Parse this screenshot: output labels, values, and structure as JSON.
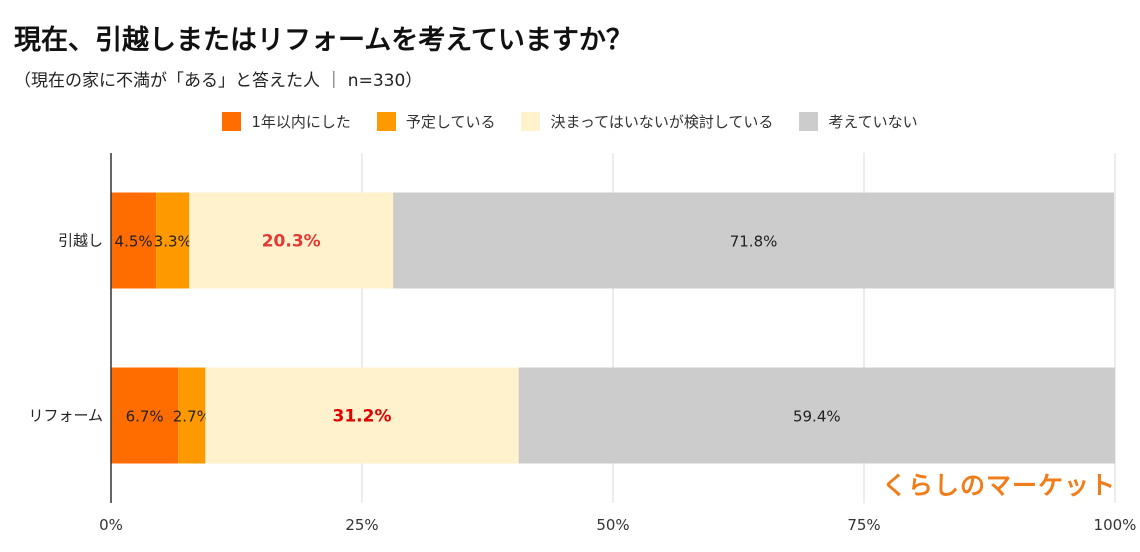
{
  "title": "現在、引越しまたはリフォームを考えていますか？",
  "subtitle": "（現在の家に不満が「ある」と答えた人 ｜ n=330）",
  "logo_text": "くらしのマーケット",
  "chart_data": {
    "type": "bar",
    "orientation": "horizontal",
    "stacked": true,
    "categories": [
      "引越し",
      "リフォーム"
    ],
    "series": [
      {
        "name": "1年以内にした",
        "color": "#ff6d01",
        "values": [
          4.5,
          6.7
        ],
        "labels": [
          "4.5%",
          "6.7%"
        ],
        "label_color": "#222222",
        "label_bold": false
      },
      {
        "name": "予定している",
        "color": "#ff9900",
        "values": [
          3.3,
          2.7
        ],
        "labels": [
          "3.3%",
          "2.7%"
        ],
        "label_color": "#222222",
        "label_bold": false
      },
      {
        "name": "決まってはいないが検討している",
        "color": "#fff2cc",
        "values": [
          20.3,
          31.2
        ],
        "labels": [
          "20.3%",
          "31.2%"
        ],
        "label_colors": [
          "#e53935",
          "#e00000"
        ],
        "label_bold": true
      },
      {
        "name": "考えていない",
        "color": "#cccccc",
        "values": [
          71.8,
          59.4
        ],
        "labels": [
          "71.8%",
          "59.4%"
        ],
        "label_color": "#222222",
        "label_bold": false
      }
    ],
    "xlim": [
      0,
      100
    ],
    "xticks": [
      "0%",
      "25%",
      "50%",
      "75%",
      "100%"
    ],
    "grid": true,
    "legend_position": "top"
  }
}
